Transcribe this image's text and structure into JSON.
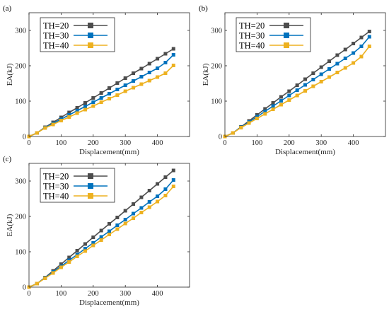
{
  "chart_data": [
    {
      "panel_label": "(a)",
      "type": "line",
      "xlabel": "Displacement(mm)",
      "ylabel": "EA(kJ)",
      "xlim": [
        0,
        500
      ],
      "ylim": [
        0,
        350
      ],
      "xticks": [
        0,
        100,
        200,
        300,
        400
      ],
      "yticks": [
        0,
        100,
        200,
        300
      ],
      "grid": false,
      "legend": "top-left",
      "x": [
        0,
        25,
        50,
        75,
        100,
        125,
        150,
        175,
        200,
        225,
        250,
        275,
        300,
        325,
        350,
        375,
        400,
        425,
        450
      ],
      "series": [
        {
          "name": "TH=20",
          "color": "#4d4d4d",
          "marker": "square",
          "values": [
            0,
            10,
            26,
            40,
            54,
            68,
            81,
            95,
            109,
            123,
            137,
            151,
            165,
            179,
            192,
            206,
            220,
            234,
            248
          ]
        },
        {
          "name": "TH=30",
          "color": "#0072bd",
          "marker": "square",
          "values": [
            0,
            10,
            25,
            37,
            49,
            61,
            73,
            85,
            97,
            109,
            121,
            133,
            145,
            157,
            169,
            181,
            193,
            209,
            231
          ]
        },
        {
          "name": "TH=40",
          "color": "#edb120",
          "marker": "square",
          "values": [
            0,
            10,
            24,
            34,
            45,
            55,
            66,
            76,
            86,
            97,
            107,
            117,
            128,
            138,
            148,
            158,
            168,
            179,
            201
          ]
        }
      ]
    },
    {
      "panel_label": "(b)",
      "type": "line",
      "xlabel": "Displacement(mm)",
      "ylabel": "EA(kJ)",
      "xlim": [
        0,
        500
      ],
      "ylim": [
        0,
        350
      ],
      "xticks": [
        0,
        100,
        200,
        300,
        400
      ],
      "yticks": [
        0,
        100,
        200,
        300
      ],
      "grid": false,
      "legend": "top-left",
      "x": [
        0,
        25,
        50,
        75,
        100,
        125,
        150,
        175,
        200,
        225,
        250,
        275,
        300,
        325,
        350,
        375,
        400,
        425,
        450
      ],
      "series": [
        {
          "name": "TH=20",
          "color": "#4d4d4d",
          "marker": "square",
          "values": [
            0,
            10,
            27,
            44,
            61,
            78,
            95,
            112,
            128,
            145,
            162,
            179,
            196,
            213,
            230,
            246,
            263,
            280,
            297
          ]
        },
        {
          "name": "TH=30",
          "color": "#0072bd",
          "marker": "square",
          "values": [
            0,
            10,
            26,
            41,
            56,
            71,
            86,
            101,
            116,
            131,
            146,
            161,
            176,
            191,
            206,
            221,
            236,
            255,
            282
          ]
        },
        {
          "name": "TH=40",
          "color": "#edb120",
          "marker": "square",
          "values": [
            0,
            10,
            25,
            38,
            51,
            64,
            77,
            90,
            103,
            116,
            129,
            142,
            155,
            168,
            181,
            194,
            208,
            226,
            255
          ]
        }
      ]
    },
    {
      "panel_label": "(c)",
      "type": "line",
      "xlabel": "Displacement(mm)",
      "ylabel": "EA(kJ)",
      "xlim": [
        0,
        500
      ],
      "ylim": [
        0,
        350
      ],
      "xticks": [
        0,
        100,
        200,
        300,
        400
      ],
      "yticks": [
        0,
        100,
        200,
        300
      ],
      "grid": false,
      "legend": "top-left",
      "x": [
        0,
        25,
        50,
        75,
        100,
        125,
        150,
        175,
        200,
        225,
        250,
        275,
        300,
        325,
        350,
        375,
        400,
        425,
        450
      ],
      "series": [
        {
          "name": "TH=20",
          "color": "#4d4d4d",
          "marker": "square",
          "values": [
            0,
            10,
            27,
            46,
            65,
            84,
            103,
            122,
            141,
            160,
            179,
            197,
            216,
            235,
            254,
            273,
            292,
            311,
            330
          ]
        },
        {
          "name": "TH=30",
          "color": "#0072bd",
          "marker": "square",
          "values": [
            0,
            10,
            26,
            43,
            59,
            76,
            92,
            109,
            125,
            142,
            158,
            175,
            191,
            208,
            224,
            241,
            257,
            277,
            303
          ]
        },
        {
          "name": "TH=40",
          "color": "#edb120",
          "marker": "square",
          "values": [
            0,
            10,
            25,
            40,
            56,
            71,
            87,
            102,
            118,
            133,
            149,
            164,
            180,
            195,
            211,
            226,
            242,
            259,
            285
          ]
        }
      ]
    }
  ]
}
